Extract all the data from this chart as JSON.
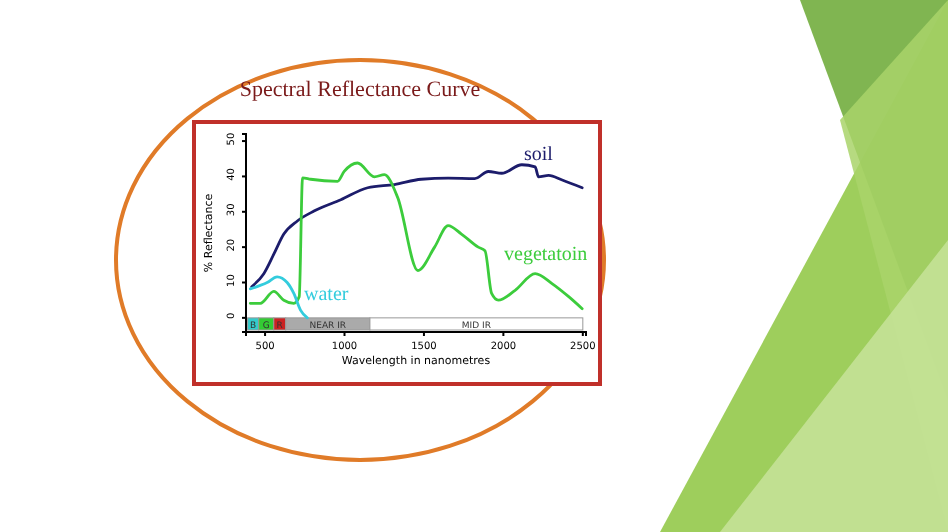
{
  "chart_data": {
    "type": "line",
    "title": "Spectral Reflectance Curve",
    "xlabel": "Wavelength in nanometres",
    "ylabel": "% Reflectance",
    "xlim": [
      380,
      2520
    ],
    "xticks": [
      500,
      1000,
      1500,
      2000,
      2500
    ],
    "ylim": [
      -4,
      52
    ],
    "yticks": [
      0,
      10,
      20,
      30,
      40,
      50
    ],
    "grid": false,
    "legend": false,
    "marker": "none",
    "line_style": "solid",
    "series": [
      {
        "name": "soil",
        "color": "#1c1c6b",
        "x": [
          416,
          492,
          555,
          618,
          703,
          808,
          977,
          1146,
          1314,
          1483,
          1652,
          1820,
          1905,
          1990,
          2116,
          2200,
          2221,
          2285,
          2370,
          2496
        ],
        "values": [
          8.8,
          12.5,
          18,
          23.7,
          27.4,
          30.2,
          33.4,
          36.8,
          37.7,
          39.2,
          39.5,
          39.4,
          41.4,
          40.9,
          43.3,
          42.7,
          39.9,
          40.3,
          39,
          36.8
        ]
      },
      {
        "name": "vegetatoin",
        "color": "#3ccc3c",
        "x": [
          407,
          470,
          555,
          618,
          681,
          715,
          736,
          787,
          956,
          998,
          1082,
          1188,
          1251,
          1335,
          1462,
          1567,
          1652,
          1736,
          1842,
          1884,
          1926,
          1968,
          2074,
          2200,
          2306,
          2411,
          2496
        ],
        "values": [
          4.1,
          4.1,
          7.5,
          5,
          4.1,
          6,
          39.6,
          39.2,
          38.6,
          41.4,
          43.8,
          39.9,
          40.5,
          34,
          13.4,
          20,
          26.1,
          23.7,
          20,
          19,
          6.9,
          5,
          7.8,
          12.5,
          9.7,
          6,
          2.6
        ]
      },
      {
        "name": "water",
        "color": "#33ccdd",
        "x": [
          407,
          513,
          576,
          639,
          681,
          723,
          766
        ],
        "values": [
          8.2,
          10,
          11.6,
          10,
          6.9,
          2.2,
          0
        ]
      }
    ],
    "bands": [
      {
        "axis": "x",
        "from": 390,
        "to": 460,
        "label": "B",
        "color": "#33cccc"
      },
      {
        "axis": "x",
        "from": 460,
        "to": 555,
        "label": "G",
        "color": "#33cc33"
      },
      {
        "axis": "x",
        "from": 555,
        "to": 630,
        "label": "R",
        "color": "#cc2222"
      },
      {
        "axis": "x",
        "from": 630,
        "to": 1160,
        "label": "NEAR IR",
        "color": "#aaaaaa"
      },
      {
        "axis": "x",
        "from": 1160,
        "to": 2500,
        "label": "MID IR",
        "color": "#ffffff"
      }
    ]
  }
}
